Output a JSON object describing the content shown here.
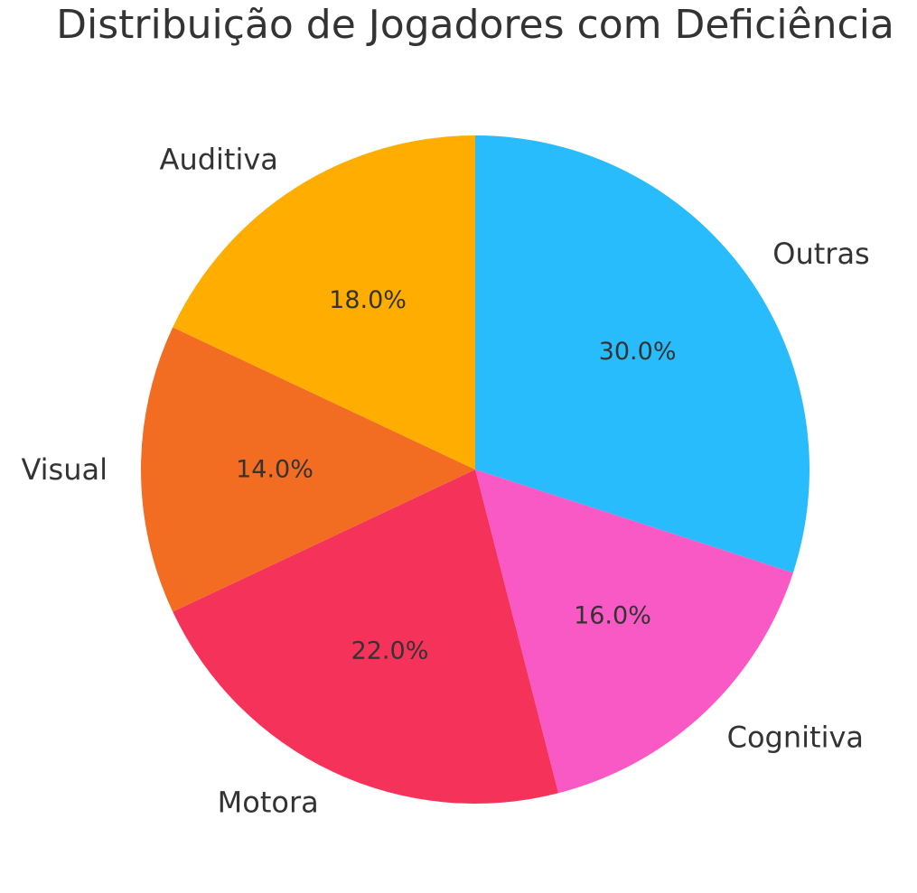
{
  "chart_data": {
    "type": "pie",
    "title": "Distribuição de Jogadores com Deficiência",
    "categories": [
      "Outras",
      "Cognitiva",
      "Motora",
      "Visual",
      "Auditiva"
    ],
    "values": [
      30.0,
      16.0,
      22.0,
      14.0,
      18.0
    ],
    "value_labels": [
      "30.0%",
      "16.0%",
      "22.0%",
      "14.0%",
      "18.0%"
    ],
    "colors": [
      "#29BCFD",
      "#F959C4",
      "#F53259",
      "#F26C22",
      "#FFAE00"
    ],
    "start_angle_deg": 90,
    "direction": "clockwise",
    "legend": "none"
  }
}
